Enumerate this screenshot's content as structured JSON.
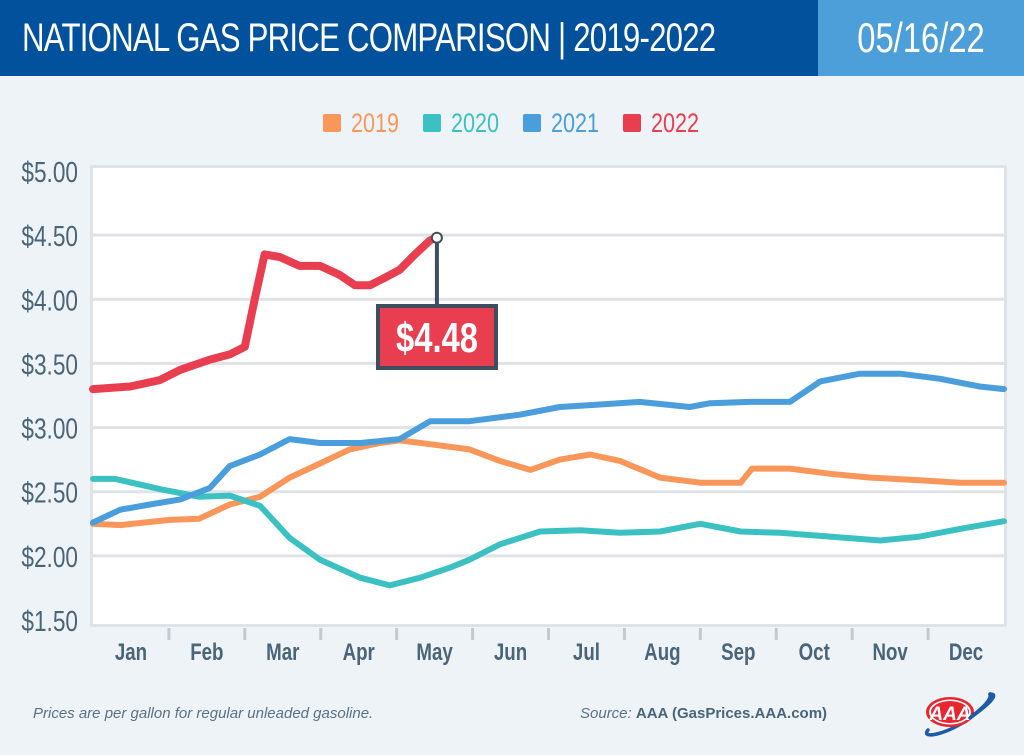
{
  "header": {
    "title": "NATIONAL GAS PRICE COMPARISON | 2019-2022",
    "date": "05/16/22"
  },
  "footer": {
    "note": "Prices are per gallon for regular unleaded gasoline.",
    "source_label": "Source:",
    "source_name": "AAA (GasPrices.AAA.com)",
    "logo": "aaa-logo"
  },
  "colors": {
    "header_bg": "#02519c",
    "date_bg": "#4d9fd9",
    "background": "#eef3f8",
    "axis_text": "#4a6478",
    "grid": "#dfe2e6",
    "callout_border": "#3d4f5e"
  },
  "chart_data": {
    "type": "line",
    "title": "National Gas Price Comparison 2019-2022",
    "xlabel": "",
    "ylabel": "",
    "x_unit": "month-of-year (0 = Jan 1, 12 = Dec 31)",
    "xlim": [
      0,
      12
    ],
    "ylim": [
      1.5,
      5.0
    ],
    "y_ticks": [
      1.5,
      2.0,
      2.5,
      3.0,
      3.5,
      4.0,
      4.5,
      5.0
    ],
    "y_tick_labels": [
      "$1.50",
      "$2.00",
      "$2.50",
      "$3.00",
      "$3.50",
      "$4.00",
      "$4.50",
      "$5.00"
    ],
    "x_tick_labels": [
      "Jan",
      "Feb",
      "Mar",
      "Apr",
      "May",
      "Jun",
      "Jul",
      "Aug",
      "Sep",
      "Oct",
      "Nov",
      "Dec"
    ],
    "grid": true,
    "legend_position": "top-center",
    "series": [
      {
        "name": "2019",
        "color": "#f9975a",
        "x": [
          0,
          0.36,
          1.01,
          1.4,
          1.8,
          2.2,
          2.59,
          2.99,
          3.38,
          3.78,
          4.04,
          4.44,
          4.96,
          5.36,
          5.76,
          6.15,
          6.55,
          6.94,
          7.47,
          8.0,
          8.53,
          8.68,
          9.18,
          9.71,
          10.24,
          10.89,
          11.42,
          12
        ],
        "values": [
          2.25,
          2.24,
          2.28,
          2.29,
          2.4,
          2.46,
          2.61,
          2.72,
          2.83,
          2.88,
          2.9,
          2.87,
          2.83,
          2.74,
          2.67,
          2.75,
          2.79,
          2.74,
          2.61,
          2.57,
          2.57,
          2.68,
          2.68,
          2.64,
          2.61,
          2.59,
          2.57,
          2.57
        ]
      },
      {
        "name": "2020",
        "color": "#3cc1c3",
        "x": [
          0,
          0.29,
          0.88,
          1.4,
          1.8,
          2.2,
          2.59,
          2.99,
          3.52,
          3.91,
          4.31,
          4.71,
          4.96,
          5.36,
          5.89,
          6.42,
          6.94,
          7.47,
          8.0,
          8.53,
          9.05,
          9.71,
          10.37,
          10.89,
          11.42,
          12
        ],
        "values": [
          2.6,
          2.6,
          2.52,
          2.46,
          2.47,
          2.39,
          2.14,
          1.97,
          1.83,
          1.77,
          1.83,
          1.91,
          1.97,
          2.09,
          2.19,
          2.2,
          2.18,
          2.19,
          2.25,
          2.19,
          2.18,
          2.15,
          2.12,
          2.15,
          2.21,
          2.27
        ]
      },
      {
        "name": "2021",
        "color": "#4a9edb",
        "x": [
          0,
          0.36,
          0.75,
          1.15,
          1.54,
          1.8,
          2.2,
          2.59,
          2.99,
          3.52,
          4.04,
          4.44,
          4.96,
          5.62,
          6.15,
          6.68,
          7.2,
          7.86,
          8.13,
          8.65,
          9.18,
          9.58,
          10.1,
          10.63,
          11.16,
          11.68,
          12
        ],
        "values": [
          2.26,
          2.36,
          2.4,
          2.44,
          2.53,
          2.7,
          2.79,
          2.91,
          2.88,
          2.88,
          2.91,
          3.05,
          3.05,
          3.1,
          3.16,
          3.18,
          3.2,
          3.16,
          3.19,
          3.2,
          3.2,
          3.36,
          3.42,
          3.42,
          3.38,
          3.32,
          3.3
        ]
      },
      {
        "name": "2022",
        "color": "#e83e4f",
        "x": [
          0,
          0.49,
          0.88,
          1.15,
          1.54,
          1.8,
          2.0,
          2.13,
          2.26,
          2.46,
          2.72,
          2.99,
          3.25,
          3.45,
          3.65,
          3.85,
          4.04,
          4.24,
          4.44,
          4.53
        ],
        "values": [
          3.3,
          3.32,
          3.37,
          3.45,
          3.53,
          3.57,
          3.63,
          4.0,
          4.35,
          4.33,
          4.26,
          4.26,
          4.19,
          4.11,
          4.11,
          4.17,
          4.23,
          4.35,
          4.46,
          4.48
        ]
      }
    ],
    "annotations": [
      {
        "series": "2022",
        "x": 4.53,
        "value": 4.48,
        "text": "$4.48"
      }
    ]
  }
}
